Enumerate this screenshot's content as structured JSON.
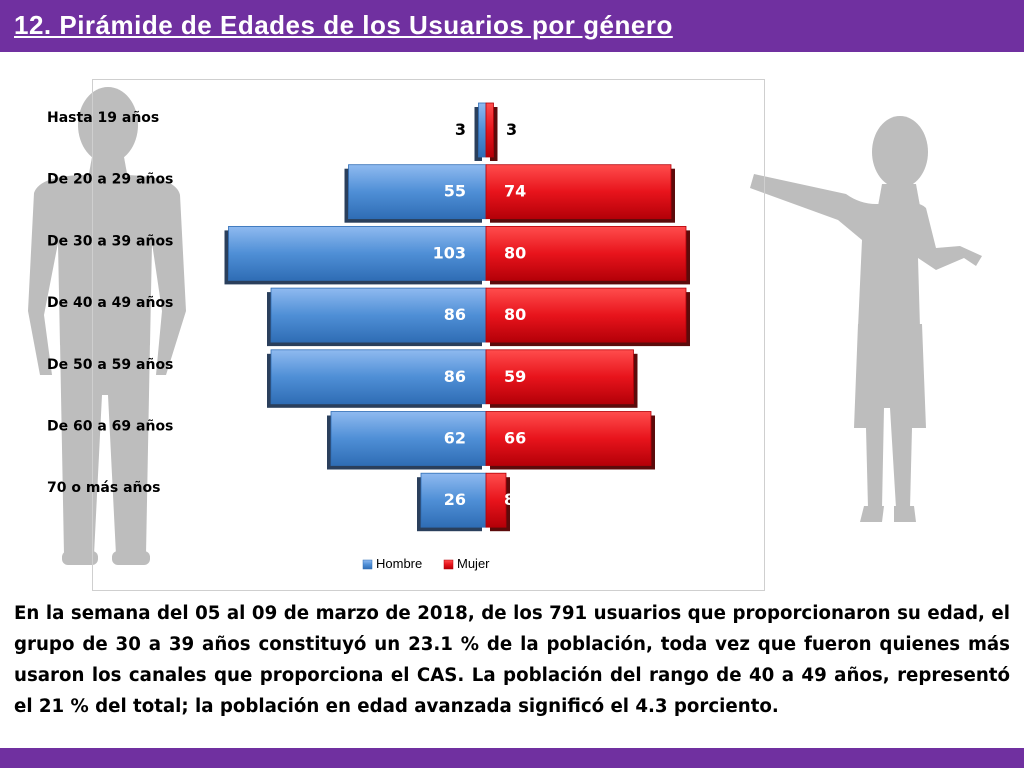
{
  "header": {
    "title": "12. Pirámide de Edades de los Usuarios por género"
  },
  "colors": {
    "header_bg": "#7030a0",
    "hombre": "#4f8fd6",
    "mujer": "#e8141c",
    "silhouette": "#bdbdbd"
  },
  "chart_data": {
    "type": "bar",
    "orientation": "horizontal-diverging",
    "categories": [
      "Hasta 19 años",
      "De 20 a 29 años",
      "De 30 a 39 años",
      "De 40 a 49 años",
      "De 50 a 59 años",
      "De 60 a 69 años",
      "70 o más años"
    ],
    "series": [
      {
        "name": "Hombre",
        "values": [
          3,
          55,
          103,
          86,
          86,
          62,
          26
        ],
        "color": "#4f8fd6"
      },
      {
        "name": "Mujer",
        "values": [
          3,
          74,
          80,
          80,
          59,
          66,
          8
        ],
        "color": "#e8141c"
      }
    ],
    "title": "",
    "xlabel": "",
    "ylabel": "",
    "legend_position": "bottom",
    "grid": false
  },
  "paragraph": "En la semana del 05 al 09 de marzo de 2018, de los 791 usuarios que proporcionaron su edad, el grupo de 30 a 39 años constituyó un 23.1 % de la población, toda vez que fueron quienes más usaron los canales que proporciona el CAS. La población del rango de 40 a 49 años, representó el 21 % del total; la población en edad avanzada significó el 4.3 porciento."
}
